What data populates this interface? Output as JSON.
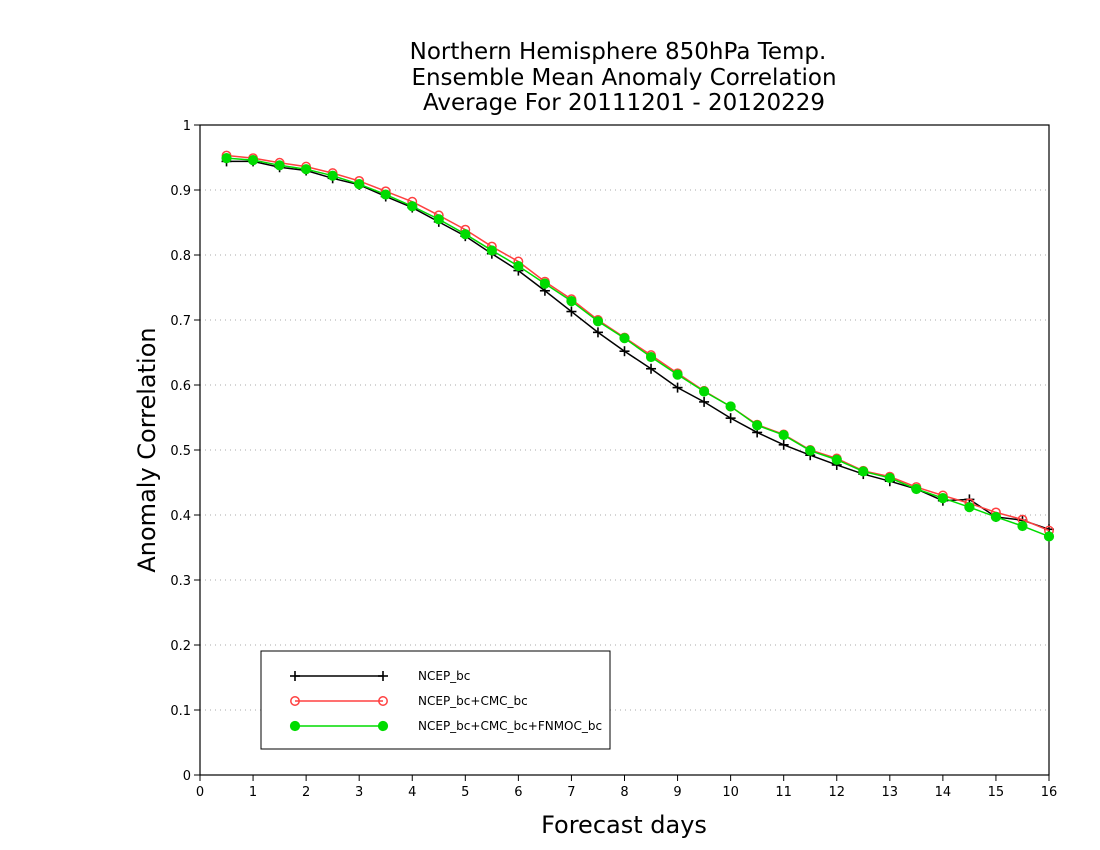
{
  "chart_data": {
    "type": "line",
    "title": [
      "Northern Hemisphere 850hPa Temp.",
      "Ensemble Mean Anomaly Correlation",
      "Average For 20111201 - 20120229"
    ],
    "xlabel": "Forecast days",
    "ylabel": "Anomaly Correlation",
    "xlim": [
      0,
      16
    ],
    "ylim": [
      0,
      1
    ],
    "xticks": [
      "0",
      "1",
      "2",
      "3",
      "4",
      "5",
      "6",
      "7",
      "8",
      "9",
      "10",
      "11",
      "12",
      "13",
      "14",
      "15",
      "16"
    ],
    "yticks": [
      "0",
      "0.1",
      "0.2",
      "0.3",
      "0.4",
      "0.5",
      "0.6",
      "0.7",
      "0.8",
      "0.9",
      "1"
    ],
    "grid": "horizontal dotted",
    "legend_position": "lower-left",
    "x": [
      0.5,
      1,
      1.5,
      2,
      2.5,
      3,
      3.5,
      4,
      4.5,
      5,
      5.5,
      6,
      6.5,
      7,
      7.5,
      8,
      8.5,
      9,
      9.5,
      10,
      10.5,
      11,
      11.5,
      12,
      12.5,
      13,
      13.5,
      14,
      14.5,
      15,
      15.5,
      16
    ],
    "series": [
      {
        "name": "NCEP_bc",
        "color": "#000000",
        "marker": "plus",
        "values": [
          0.944,
          0.944,
          0.935,
          0.93,
          0.918,
          0.908,
          0.89,
          0.873,
          0.851,
          0.829,
          0.802,
          0.776,
          0.745,
          0.713,
          0.681,
          0.652,
          0.625,
          0.596,
          0.574,
          0.549,
          0.527,
          0.508,
          0.492,
          0.477,
          0.463,
          0.452,
          0.44,
          0.422,
          0.424,
          0.397,
          0.392,
          0.378
        ]
      },
      {
        "name": "NCEP_bc+CMC_bc",
        "color": "#ff4040",
        "marker": "open-circle",
        "values": [
          0.953,
          0.949,
          0.942,
          0.936,
          0.926,
          0.914,
          0.898,
          0.882,
          0.861,
          0.839,
          0.813,
          0.79,
          0.759,
          0.732,
          0.7,
          0.673,
          0.646,
          0.618,
          0.591,
          0.567,
          0.539,
          0.524,
          0.5,
          0.487,
          0.468,
          0.459,
          0.443,
          0.43,
          0.418,
          0.404,
          0.393,
          0.376
        ]
      },
      {
        "name": "NCEP_bc+CMC_bc+FNMOC_bc",
        "color": "#00dc00",
        "marker": "filled-circle",
        "values": [
          0.949,
          0.946,
          0.938,
          0.932,
          0.922,
          0.909,
          0.893,
          0.875,
          0.855,
          0.832,
          0.807,
          0.783,
          0.756,
          0.729,
          0.698,
          0.672,
          0.643,
          0.616,
          0.59,
          0.567,
          0.538,
          0.523,
          0.499,
          0.485,
          0.467,
          0.457,
          0.44,
          0.426,
          0.412,
          0.397,
          0.383,
          0.367
        ]
      }
    ]
  }
}
